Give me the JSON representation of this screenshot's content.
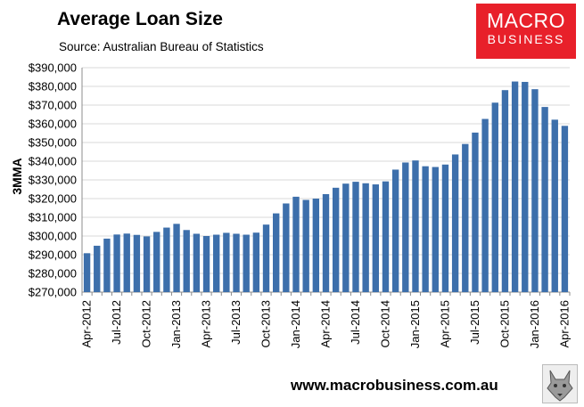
{
  "header": {
    "title": "Average Loan Size",
    "source": "Source: Australian Bureau of Statistics"
  },
  "logo": {
    "line1": "MACRO",
    "line2": "BUSINESS"
  },
  "footer": {
    "url": "www.macrobusiness.com.au"
  },
  "colors": {
    "bar": "#3d6fab",
    "grid": "#d9d9d9",
    "logo": "#e8202a"
  },
  "chart_data": {
    "type": "bar",
    "ylabel": "3MMA",
    "ylim": [
      270000,
      390000
    ],
    "yticks": [
      "$270,000",
      "$280,000",
      "$290,000",
      "$300,000",
      "$310,000",
      "$320,000",
      "$330,000",
      "$340,000",
      "$350,000",
      "$360,000",
      "$370,000",
      "$380,000",
      "$390,000"
    ],
    "xtick_labels": [
      "Apr-2012",
      "Jul-2012",
      "Oct-2012",
      "Jan-2013",
      "Apr-2013",
      "Jul-2013",
      "Oct-2013",
      "Jan-2014",
      "Apr-2014",
      "Jul-2014",
      "Oct-2014",
      "Jan-2015",
      "Apr-2015",
      "Jul-2015",
      "Oct-2015",
      "Jan-2016",
      "Apr-2016"
    ],
    "categories": [
      "Apr-2012",
      "May-2012",
      "Jun-2012",
      "Jul-2012",
      "Aug-2012",
      "Sep-2012",
      "Oct-2012",
      "Nov-2012",
      "Dec-2012",
      "Jan-2013",
      "Feb-2013",
      "Mar-2013",
      "Apr-2013",
      "May-2013",
      "Jun-2013",
      "Jul-2013",
      "Aug-2013",
      "Sep-2013",
      "Oct-2013",
      "Nov-2013",
      "Dec-2013",
      "Jan-2014",
      "Feb-2014",
      "Mar-2014",
      "Apr-2014",
      "May-2014",
      "Jun-2014",
      "Jul-2014",
      "Aug-2014",
      "Sep-2014",
      "Oct-2014",
      "Nov-2014",
      "Dec-2014",
      "Jan-2015",
      "Feb-2015",
      "Mar-2015",
      "Apr-2015",
      "May-2015",
      "Jun-2015",
      "Jul-2015",
      "Aug-2015",
      "Sep-2015",
      "Oct-2015",
      "Nov-2015",
      "Dec-2015",
      "Jan-2016",
      "Feb-2016",
      "Mar-2016",
      "Apr-2016"
    ],
    "values": [
      290800,
      294800,
      298600,
      300800,
      301300,
      300600,
      299800,
      302200,
      304500,
      306500,
      303200,
      301200,
      300000,
      300700,
      301700,
      301200,
      300700,
      301800,
      306100,
      312100,
      317400,
      321000,
      319300,
      320000,
      322400,
      325800,
      328000,
      329000,
      328200,
      327600,
      329200,
      335500,
      339300,
      340400,
      337300,
      336900,
      338200,
      343600,
      349200,
      355300,
      362600,
      371300,
      378000,
      382600,
      382400,
      378500,
      369000,
      362200,
      358900
    ]
  }
}
